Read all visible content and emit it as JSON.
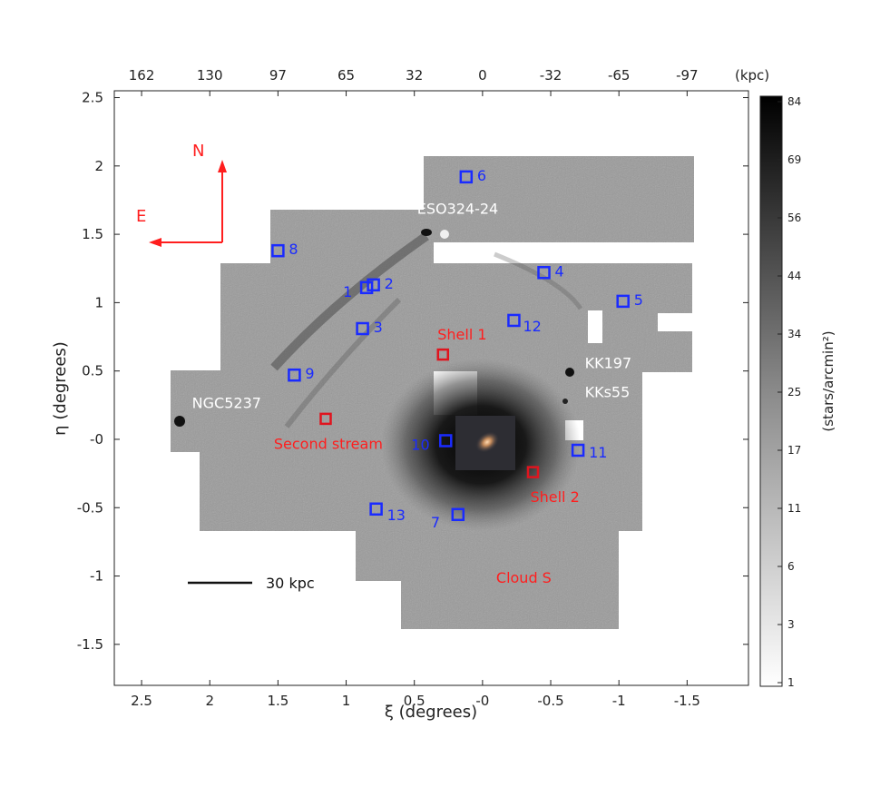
{
  "figure": {
    "x_axis_label": "ξ (degrees)",
    "y_axis_label": "η (degrees)",
    "top_axis_unit": "(kpc)",
    "colorbar_label": "(stars/arcmin²)",
    "x_range": [
      2.7,
      -1.95
    ],
    "y_range": [
      -1.8,
      2.55
    ],
    "x_ticks": [
      {
        "value": 2.5,
        "label": "2.5"
      },
      {
        "value": 2,
        "label": "2"
      },
      {
        "value": 1.5,
        "label": "1.5"
      },
      {
        "value": 1,
        "label": "1"
      },
      {
        "value": 0.5,
        "label": "0.5"
      },
      {
        "value": 0,
        "label": "-0"
      },
      {
        "value": -0.5,
        "label": "-0.5"
      },
      {
        "value": -1,
        "label": "-1"
      },
      {
        "value": -1.5,
        "label": "-1.5"
      }
    ],
    "y_ticks": [
      {
        "value": 2.5,
        "label": "2.5"
      },
      {
        "value": 2,
        "label": "2"
      },
      {
        "value": 1.5,
        "label": "1.5"
      },
      {
        "value": 1,
        "label": "1"
      },
      {
        "value": 0.5,
        "label": "0.5"
      },
      {
        "value": 0,
        "label": "-0"
      },
      {
        "value": -0.5,
        "label": "-0.5"
      },
      {
        "value": -1,
        "label": "-1"
      },
      {
        "value": -1.5,
        "label": "-1.5"
      }
    ],
    "top_ticks": [
      {
        "value": 2.5,
        "label": "162"
      },
      {
        "value": 2.0,
        "label": "130"
      },
      {
        "value": 1.5,
        "label": "97"
      },
      {
        "value": 1.0,
        "label": "65"
      },
      {
        "value": 0.5,
        "label": "32"
      },
      {
        "value": 0.0,
        "label": "0"
      },
      {
        "value": -0.5,
        "label": "-32"
      },
      {
        "value": -1.0,
        "label": "-65"
      },
      {
        "value": -1.5,
        "label": "-97"
      }
    ],
    "colorbar_ticks": [
      "84",
      "69",
      "56",
      "44",
      "34",
      "25",
      "17",
      "11",
      "6",
      "3",
      "1"
    ],
    "fields_blue": [
      {
        "id": "1",
        "xi": 0.85,
        "eta": 1.11
      },
      {
        "id": "2",
        "xi": 0.8,
        "eta": 1.13
      },
      {
        "id": "3",
        "xi": 0.88,
        "eta": 0.81
      },
      {
        "id": "4",
        "xi": -0.45,
        "eta": 1.22
      },
      {
        "id": "5",
        "xi": -1.03,
        "eta": 1.01
      },
      {
        "id": "6",
        "xi": 0.12,
        "eta": 1.92
      },
      {
        "id": "7",
        "xi": 0.18,
        "eta": -0.55
      },
      {
        "id": "8",
        "xi": 1.5,
        "eta": 1.38
      },
      {
        "id": "9",
        "xi": 1.38,
        "eta": 0.47
      },
      {
        "id": "10",
        "xi": 0.27,
        "eta": -0.01
      },
      {
        "id": "11",
        "xi": -0.7,
        "eta": -0.08
      },
      {
        "id": "12",
        "xi": -0.23,
        "eta": 0.87
      },
      {
        "id": "13",
        "xi": 0.78,
        "eta": -0.51
      }
    ],
    "fields_red": [
      {
        "xi": 0.29,
        "eta": 0.62
      },
      {
        "xi": 1.15,
        "eta": 0.15
      },
      {
        "xi": -0.37,
        "eta": -0.24
      }
    ],
    "annotations_white": [
      {
        "text": "ESO324-24",
        "xi": 0.48,
        "eta": 1.65
      },
      {
        "text": "KK197",
        "xi": -0.75,
        "eta": 0.52
      },
      {
        "text": "KKs55",
        "xi": -0.75,
        "eta": 0.31
      },
      {
        "text": "NGC5237",
        "xi": 2.13,
        "eta": 0.23
      }
    ],
    "annotations_red": [
      {
        "text": "Shell 1",
        "xi": 0.33,
        "eta": 0.73
      },
      {
        "text": "Second stream",
        "xi": 1.53,
        "eta": -0.07
      },
      {
        "text": "Shell 2",
        "xi": -0.35,
        "eta": -0.46
      },
      {
        "text": "Cloud S",
        "xi": -0.1,
        "eta": -1.05
      }
    ],
    "compass": {
      "north": "N",
      "east": "E"
    },
    "scale_bar": {
      "label": "30 kpc"
    },
    "colors": {
      "blue_field": "#1a2bff",
      "red_field": "#e0141e",
      "annotation_red": "#ff1e1e",
      "annotation_white": "#ffffff"
    }
  }
}
